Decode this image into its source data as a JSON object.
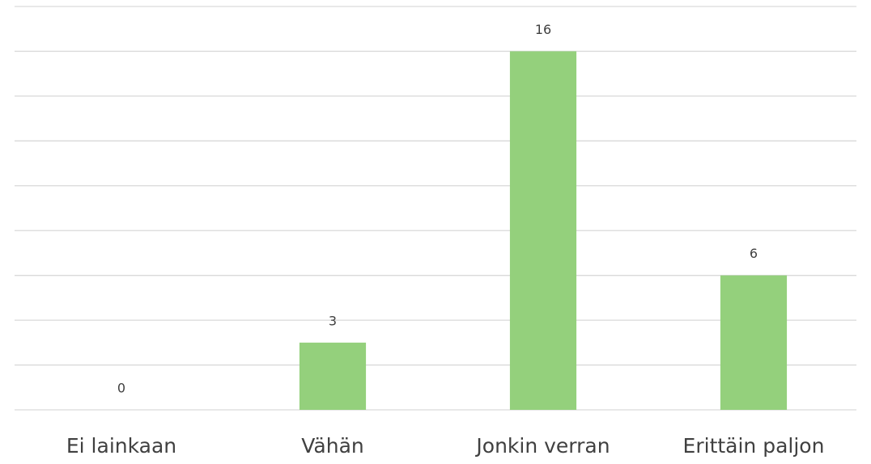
{
  "chart_data": {
    "type": "bar",
    "categories": [
      "Ei lainkaan",
      "Vähän",
      "Jonkin verran",
      "Erittäin paljon"
    ],
    "values": [
      0,
      3,
      16,
      6
    ],
    "color": "#94d07c",
    "ylim": [
      0,
      18
    ],
    "yticks": [
      0,
      2,
      4,
      6,
      8,
      10,
      12,
      14,
      16,
      18
    ],
    "grid": true
  }
}
